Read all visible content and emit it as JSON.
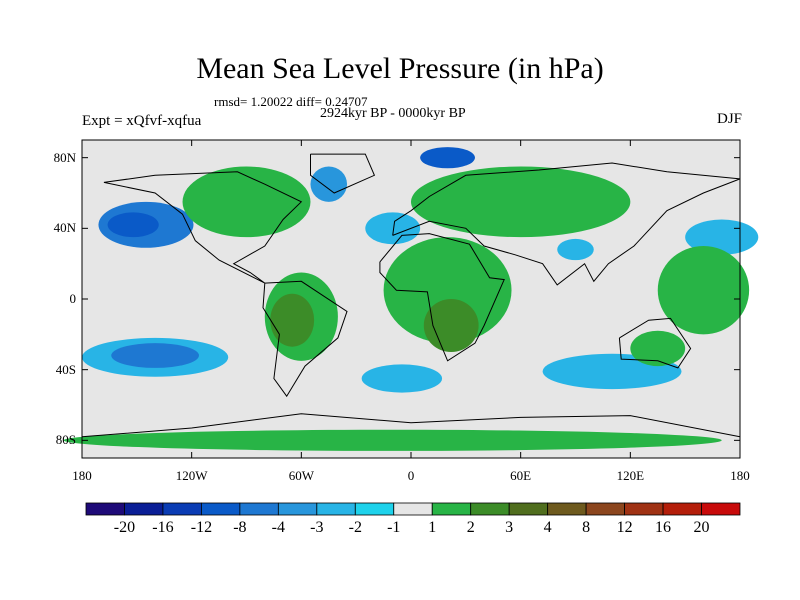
{
  "title": "Mean Sea Level Pressure (in hPa)",
  "stats": "rmsd= 1.20022 diff= 0.24707",
  "period": "2924kyr BP - 0000kyr BP",
  "experiment": "Expt = xQfvf-xqfua",
  "season": "DJF",
  "y_ticks": [
    {
      "label": "80N",
      "lat": 80
    },
    {
      "label": "40N",
      "lat": 40
    },
    {
      "label": "0",
      "lat": 0
    },
    {
      "label": "40S",
      "lat": -40
    },
    {
      "label": "80S",
      "lat": -80
    }
  ],
  "x_ticks": [
    {
      "label": "180",
      "lon": -180
    },
    {
      "label": "120W",
      "lon": -120
    },
    {
      "label": "60W",
      "lon": -60
    },
    {
      "label": "0",
      "lon": 0
    },
    {
      "label": "60E",
      "lon": 60
    },
    {
      "label": "120E",
      "lon": 120
    },
    {
      "label": "180",
      "lon": 180
    }
  ],
  "colorbar": {
    "colors": [
      "#1e0a78",
      "#0a1e96",
      "#0a3cb4",
      "#0a5ac8",
      "#1e78d2",
      "#2896dc",
      "#28b4e6",
      "#1ed2eb",
      "#e6e6e6",
      "#28b446",
      "#3c8c28",
      "#506e1e",
      "#6e5a1e",
      "#8c461e",
      "#a03214",
      "#b41e0a",
      "#c80a0a"
    ],
    "labels": [
      "-20",
      "-16",
      "-12",
      "-8",
      "-4",
      "-3",
      "-2",
      "-1",
      "1",
      "2",
      "3",
      "4",
      "8",
      "12",
      "16",
      "20"
    ]
  },
  "fields": [
    {
      "name": "n-pacific-low",
      "lon": -145,
      "lat": 42,
      "rlon": 26,
      "rlat": 13,
      "level": -6
    },
    {
      "name": "n-pacific-low-core",
      "lon": -152,
      "lat": 42,
      "rlon": 14,
      "rlat": 7,
      "level": -10
    },
    {
      "name": "s-pacific-low",
      "lon": -140,
      "lat": -33,
      "rlon": 40,
      "rlat": 11,
      "level": -2
    },
    {
      "name": "s-pacific-low-core",
      "lon": -140,
      "lat": -32,
      "rlon": 24,
      "rlat": 7,
      "level": -4
    },
    {
      "name": "n-atlantic-low",
      "lon": -10,
      "lat": 40,
      "rlon": 15,
      "rlat": 9,
      "level": -2
    },
    {
      "name": "s-atlantic-low",
      "lon": -5,
      "lat": -45,
      "rlon": 22,
      "rlat": 8,
      "level": -2
    },
    {
      "name": "s-indian-low",
      "lon": 110,
      "lat": -41,
      "rlon": 38,
      "rlat": 10,
      "level": -2
    },
    {
      "name": "greenland-low",
      "lon": -45,
      "lat": 65,
      "rlon": 10,
      "rlat": 10,
      "level": -3
    },
    {
      "name": "arctic-low",
      "lon": 20,
      "lat": 80,
      "rlon": 15,
      "rlat": 6,
      "level": -8
    },
    {
      "name": "w-pacific-low",
      "lon": 170,
      "lat": 35,
      "rlon": 20,
      "rlat": 10,
      "level": -2
    },
    {
      "name": "tibet-low",
      "lon": 90,
      "lat": 28,
      "rlon": 10,
      "rlat": 6,
      "level": -2
    },
    {
      "name": "eurasia-high",
      "lon": 60,
      "lat": 55,
      "rlon": 60,
      "rlat": 20,
      "level": 2
    },
    {
      "name": "n-america-high",
      "lon": -90,
      "lat": 55,
      "rlon": 35,
      "rlat": 20,
      "level": 2
    },
    {
      "name": "africa-high",
      "lon": 20,
      "lat": 5,
      "rlon": 35,
      "rlat": 30,
      "level": 2
    },
    {
      "name": "s-america-high",
      "lon": -60,
      "lat": -10,
      "rlon": 20,
      "rlat": 25,
      "level": 2
    },
    {
      "name": "s-america-core",
      "lon": -65,
      "lat": -12,
      "rlon": 12,
      "rlat": 15,
      "level": 3
    },
    {
      "name": "africa-core",
      "lon": 22,
      "lat": -15,
      "rlon": 15,
      "rlat": 15,
      "level": 3
    },
    {
      "name": "pacific-band",
      "lon": 160,
      "lat": 5,
      "rlon": 25,
      "rlat": 25,
      "level": 2
    },
    {
      "name": "australia-high",
      "lon": 135,
      "lat": -28,
      "rlon": 15,
      "rlat": 10,
      "level": 2
    },
    {
      "name": "antarctic-high",
      "lon": -10,
      "lat": -80,
      "rlon": 180,
      "rlat": 6,
      "level": 2
    }
  ]
}
